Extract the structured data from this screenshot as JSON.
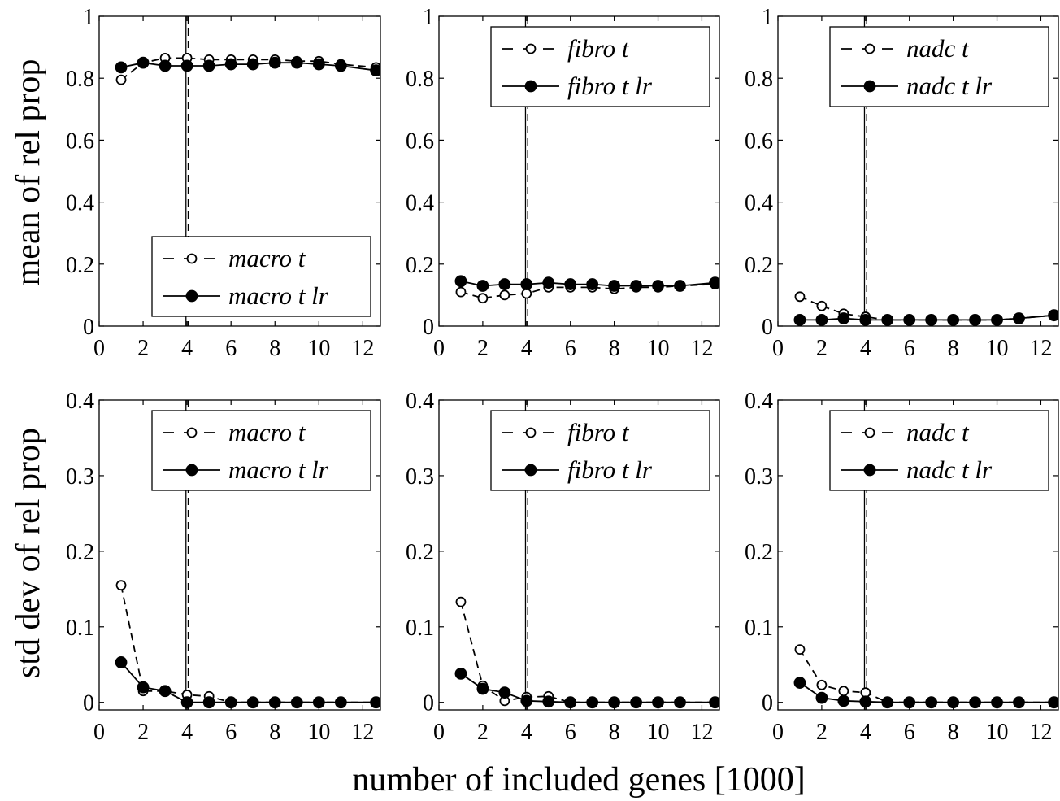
{
  "figure": {
    "ylabel_top": "mean of rel prop",
    "ylabel_bottom": "std dev of rel prop",
    "xlabel": "number of included genes [1000]"
  },
  "chart_data": [
    {
      "type": "line",
      "row": 0,
      "col": 0,
      "xlim": [
        0,
        12.8
      ],
      "ylim": [
        0,
        1
      ],
      "xticks": [
        0,
        2,
        4,
        6,
        8,
        10,
        12
      ],
      "yticks": [
        0,
        0.2,
        0.4,
        0.6,
        0.8,
        1
      ],
      "ytick_labels": [
        "0",
        "0.2",
        "0.4",
        "0.6",
        "0.8",
        "1"
      ],
      "vlines": [
        {
          "x": 3.95,
          "style": "solid"
        },
        {
          "x": 4.05,
          "style": "dashed"
        }
      ],
      "legend": "bottom-right",
      "series": [
        {
          "name": "macro t",
          "line": "dashed",
          "marker": "open-circle",
          "x": [
            1,
            2,
            3,
            4,
            5,
            6,
            7,
            8,
            9,
            10,
            11,
            12.6
          ],
          "y": [
            0.795,
            0.85,
            0.865,
            0.865,
            0.86,
            0.86,
            0.86,
            0.86,
            0.855,
            0.855,
            0.845,
            0.835
          ]
        },
        {
          "name": "macro t lr",
          "line": "solid",
          "marker": "filled-circle",
          "x": [
            1,
            2,
            3,
            4,
            5,
            6,
            7,
            8,
            9,
            10,
            11,
            12.6
          ],
          "y": [
            0.835,
            0.85,
            0.84,
            0.84,
            0.84,
            0.845,
            0.845,
            0.85,
            0.85,
            0.845,
            0.84,
            0.825
          ]
        }
      ]
    },
    {
      "type": "line",
      "row": 0,
      "col": 1,
      "xlim": [
        0,
        12.8
      ],
      "ylim": [
        0,
        1
      ],
      "xticks": [
        0,
        2,
        4,
        6,
        8,
        10,
        12
      ],
      "yticks": [
        0,
        0.2,
        0.4,
        0.6,
        0.8,
        1
      ],
      "ytick_labels": [
        "0",
        "0.2",
        "0.4",
        "0.6",
        "0.8",
        "1"
      ],
      "vlines": [
        {
          "x": 3.95,
          "style": "solid"
        },
        {
          "x": 4.05,
          "style": "dashed"
        }
      ],
      "legend": "top-right",
      "series": [
        {
          "name": "fibro t",
          "line": "dashed",
          "marker": "open-circle",
          "x": [
            1,
            2,
            3,
            4,
            5,
            6,
            7,
            8,
            9,
            10,
            11,
            12.6
          ],
          "y": [
            0.11,
            0.09,
            0.1,
            0.105,
            0.125,
            0.125,
            0.125,
            0.12,
            0.125,
            0.125,
            0.13,
            0.135
          ]
        },
        {
          "name": "fibro t lr",
          "line": "solid",
          "marker": "filled-circle",
          "x": [
            1,
            2,
            3,
            4,
            5,
            6,
            7,
            8,
            9,
            10,
            11,
            12.6
          ],
          "y": [
            0.145,
            0.13,
            0.135,
            0.135,
            0.14,
            0.135,
            0.135,
            0.13,
            0.13,
            0.13,
            0.13,
            0.14
          ]
        }
      ]
    },
    {
      "type": "line",
      "row": 0,
      "col": 2,
      "xlim": [
        0,
        12.8
      ],
      "ylim": [
        0,
        1
      ],
      "xticks": [
        0,
        2,
        4,
        6,
        8,
        10,
        12
      ],
      "yticks": [
        0,
        0.2,
        0.4,
        0.6,
        0.8,
        1
      ],
      "ytick_labels": [
        "0",
        "0.2",
        "0.4",
        "0.6",
        "0.8",
        "1"
      ],
      "vlines": [
        {
          "x": 3.95,
          "style": "solid"
        },
        {
          "x": 4.05,
          "style": "dashed"
        }
      ],
      "legend": "top-right",
      "series": [
        {
          "name": "nadc t",
          "line": "dashed",
          "marker": "open-circle",
          "x": [
            1,
            2,
            3,
            4,
            5,
            6,
            7,
            8,
            9,
            10,
            11,
            12.6
          ],
          "y": [
            0.095,
            0.065,
            0.04,
            0.03,
            0.02,
            0.02,
            0.02,
            0.02,
            0.02,
            0.02,
            0.025,
            0.035
          ]
        },
        {
          "name": "nadc t lr",
          "line": "solid",
          "marker": "filled-circle",
          "x": [
            1,
            2,
            3,
            4,
            5,
            6,
            7,
            8,
            9,
            10,
            11,
            12.6
          ],
          "y": [
            0.02,
            0.02,
            0.025,
            0.02,
            0.02,
            0.02,
            0.02,
            0.02,
            0.02,
            0.02,
            0.025,
            0.035
          ]
        }
      ]
    },
    {
      "type": "line",
      "row": 1,
      "col": 0,
      "xlim": [
        0,
        12.8
      ],
      "ylim": [
        -0.01,
        0.4
      ],
      "xticks": [
        0,
        2,
        4,
        6,
        8,
        10,
        12
      ],
      "yticks": [
        0,
        0.1,
        0.2,
        0.3,
        0.4
      ],
      "ytick_labels": [
        "0",
        "0.1",
        "0.2",
        "0.3",
        "0.4"
      ],
      "vlines": [
        {
          "x": 3.95,
          "style": "solid"
        },
        {
          "x": 4.05,
          "style": "dashed"
        }
      ],
      "legend": "top-right",
      "series": [
        {
          "name": "macro t",
          "line": "dashed",
          "marker": "open-circle",
          "x": [
            1,
            2,
            3,
            4,
            5,
            6,
            7,
            8,
            9,
            10,
            11,
            12.6
          ],
          "y": [
            0.155,
            0.015,
            0.015,
            0.01,
            0.008,
            0.0,
            0.0,
            0.0,
            0.0,
            0.0,
            0.0,
            0.0
          ]
        },
        {
          "name": "macro t lr",
          "line": "solid",
          "marker": "filled-circle",
          "x": [
            1,
            2,
            3,
            4,
            5,
            6,
            7,
            8,
            9,
            10,
            11,
            12.6
          ],
          "y": [
            0.053,
            0.02,
            0.015,
            0.0,
            0.0,
            0.0,
            0.0,
            0.0,
            0.0,
            0.0,
            0.0,
            0.0
          ]
        }
      ]
    },
    {
      "type": "line",
      "row": 1,
      "col": 1,
      "xlim": [
        0,
        12.8
      ],
      "ylim": [
        -0.01,
        0.4
      ],
      "xticks": [
        0,
        2,
        4,
        6,
        8,
        10,
        12
      ],
      "yticks": [
        0,
        0.1,
        0.2,
        0.3,
        0.4
      ],
      "ytick_labels": [
        "0",
        "0.1",
        "0.2",
        "0.3",
        "0.4"
      ],
      "vlines": [
        {
          "x": 3.95,
          "style": "solid"
        },
        {
          "x": 4.05,
          "style": "dashed"
        }
      ],
      "legend": "top-right",
      "series": [
        {
          "name": "fibro t",
          "line": "dashed",
          "marker": "open-circle",
          "x": [
            1,
            2,
            3,
            4,
            5,
            6,
            7,
            8,
            9,
            10,
            11,
            12.6
          ],
          "y": [
            0.133,
            0.022,
            0.002,
            0.007,
            0.008,
            0.0,
            0.0,
            0.0,
            0.0,
            0.0,
            0.0,
            0.0
          ]
        },
        {
          "name": "fibro t lr",
          "line": "solid",
          "marker": "filled-circle",
          "x": [
            1,
            2,
            3,
            4,
            5,
            6,
            7,
            8,
            9,
            10,
            11,
            12.6
          ],
          "y": [
            0.038,
            0.018,
            0.013,
            0.002,
            0.001,
            0.0,
            0.0,
            0.0,
            0.0,
            0.0,
            0.0,
            0.0
          ]
        }
      ]
    },
    {
      "type": "line",
      "row": 1,
      "col": 2,
      "xlim": [
        0,
        12.8
      ],
      "ylim": [
        -0.01,
        0.4
      ],
      "xticks": [
        0,
        2,
        4,
        6,
        8,
        10,
        12
      ],
      "yticks": [
        0,
        0.1,
        0.2,
        0.3,
        0.4
      ],
      "ytick_labels": [
        "0",
        "0.1",
        "0.2",
        "0.3",
        "0.4"
      ],
      "vlines": [
        {
          "x": 3.95,
          "style": "solid"
        },
        {
          "x": 4.05,
          "style": "dashed"
        }
      ],
      "legend": "top-right",
      "series": [
        {
          "name": "nadc t",
          "line": "dashed",
          "marker": "open-circle",
          "x": [
            1,
            2,
            3,
            4,
            5,
            6,
            7,
            8,
            9,
            10,
            11,
            12.6
          ],
          "y": [
            0.07,
            0.023,
            0.015,
            0.013,
            0.0,
            0.0,
            0.0,
            0.0,
            0.0,
            0.0,
            0.0,
            0.0
          ]
        },
        {
          "name": "nadc t lr",
          "line": "solid",
          "marker": "filled-circle",
          "x": [
            1,
            2,
            3,
            4,
            5,
            6,
            7,
            8,
            9,
            10,
            11,
            12.6
          ],
          "y": [
            0.026,
            0.006,
            0.002,
            0.001,
            0.0,
            0.0,
            0.0,
            0.0,
            0.0,
            0.0,
            0.0,
            0.0
          ]
        }
      ]
    }
  ]
}
